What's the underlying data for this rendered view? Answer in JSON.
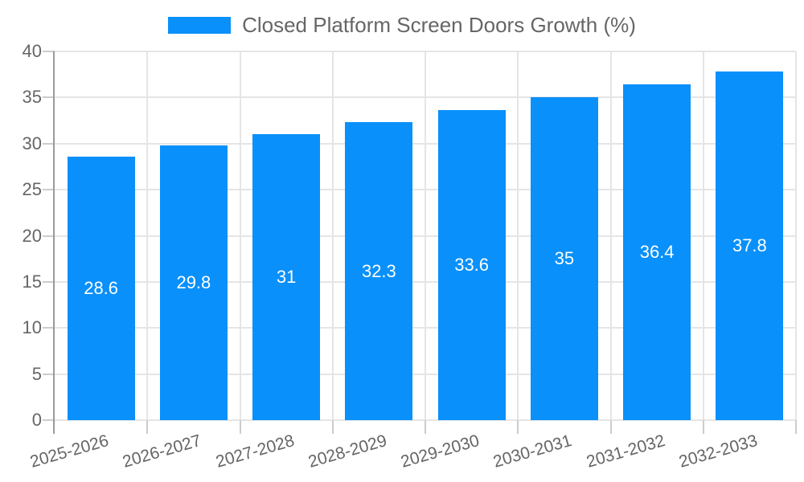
{
  "chart_data": {
    "type": "bar",
    "title": "Closed Platform Screen Doors Growth (%)",
    "legend_position": "top",
    "categories": [
      "2025-2026",
      "2026-2027",
      "2027-2028",
      "2028-2029",
      "2029-2030",
      "2030-2031",
      "2031-2032",
      "2032-2033"
    ],
    "series": [
      {
        "name": "Closed Platform Screen Doors Growth (%)",
        "values": [
          28.6,
          29.8,
          31,
          32.3,
          33.6,
          35,
          36.4,
          37.8
        ]
      }
    ],
    "bar_value_labels": [
      "28.6",
      "29.8",
      "31",
      "32.3",
      "33.6",
      "35",
      "36.4",
      "37.8"
    ],
    "xlabel": "",
    "ylabel": "",
    "ylim": [
      0,
      40
    ],
    "yticks": [
      0,
      5,
      10,
      15,
      20,
      25,
      30,
      35,
      40
    ],
    "grid": true,
    "colors": {
      "bar": "#0990fa",
      "grid": "#e5e5e5",
      "axis": "#9a9a9a",
      "tick": "#cccccc",
      "label_text": "#666666",
      "bar_label_text": "#ffffff"
    }
  }
}
